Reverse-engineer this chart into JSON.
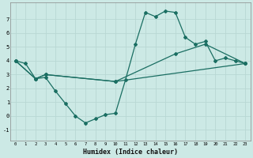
{
  "xlabel": "Humidex (Indice chaleur)",
  "xlim": [
    -0.5,
    23.5
  ],
  "ylim": [
    -1.8,
    8.2
  ],
  "yticks": [
    -1,
    0,
    1,
    2,
    3,
    4,
    5,
    6,
    7
  ],
  "xticks": [
    0,
    1,
    2,
    3,
    4,
    5,
    6,
    7,
    8,
    9,
    10,
    11,
    12,
    13,
    14,
    15,
    16,
    17,
    18,
    19,
    20,
    21,
    22,
    23
  ],
  "bg_color": "#cce9e5",
  "grid_color": "#b8d8d4",
  "line_color": "#1a6e62",
  "line1_x": [
    0,
    1,
    2,
    3,
    4,
    5,
    6,
    7,
    8,
    9,
    10,
    11,
    12,
    13,
    14,
    15,
    16,
    17,
    18,
    19,
    20,
    21,
    22,
    23
  ],
  "line1_y": [
    4.0,
    3.8,
    2.7,
    2.8,
    1.8,
    0.9,
    0.0,
    -0.5,
    -0.2,
    0.1,
    0.2,
    2.6,
    5.2,
    7.5,
    7.2,
    7.6,
    7.5,
    5.7,
    5.2,
    5.4,
    4.0,
    4.2,
    4.0,
    3.8
  ],
  "line2_x": [
    0,
    2,
    3,
    10,
    23
  ],
  "line2_y": [
    4.0,
    2.7,
    3.0,
    2.5,
    3.8
  ],
  "line3_x": [
    0,
    2,
    3,
    10,
    16,
    19,
    23
  ],
  "line3_y": [
    4.0,
    2.7,
    3.0,
    2.5,
    4.5,
    5.2,
    3.8
  ]
}
